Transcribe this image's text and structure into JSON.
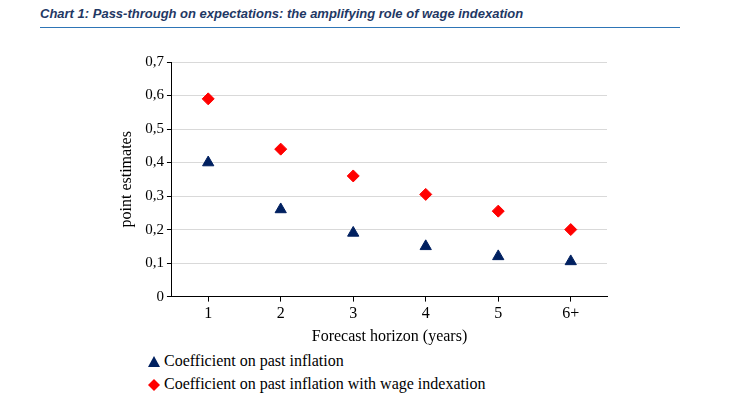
{
  "chart_data": {
    "type": "scatter",
    "title": "Chart 1: Pass-through on expectations: the amplifying role of wage indexation",
    "x_label": "Forecast horizon (years)",
    "y_label": "point estimates",
    "categories": [
      "1",
      "2",
      "3",
      "4",
      "5",
      "6+"
    ],
    "series": [
      {
        "name": "Coefficient on past inflation",
        "color": "#002060",
        "marker": "triangle",
        "values": [
          0.4,
          0.26,
          0.19,
          0.15,
          0.12,
          0.105
        ]
      },
      {
        "name": "Coefficient on past inflation with wage indexation",
        "color": "#ff0000",
        "marker": "diamond",
        "values": [
          0.59,
          0.44,
          0.36,
          0.305,
          0.255,
          0.2
        ]
      }
    ],
    "ylim": [
      0,
      0.7
    ],
    "yticks": [
      0,
      {
        "value": 0.1,
        "label": "0,1"
      },
      {
        "value": 0.2,
        "label": "0,2"
      },
      {
        "value": 0.3,
        "label": "0,3"
      },
      {
        "value": 0.4,
        "label": "0,4"
      },
      {
        "value": 0.5,
        "label": "0,5"
      },
      {
        "value": 0.6,
        "label": "0,6"
      },
      {
        "value": 0.7,
        "label": "0,7"
      }
    ],
    "grid": true,
    "legend": "bottom"
  }
}
